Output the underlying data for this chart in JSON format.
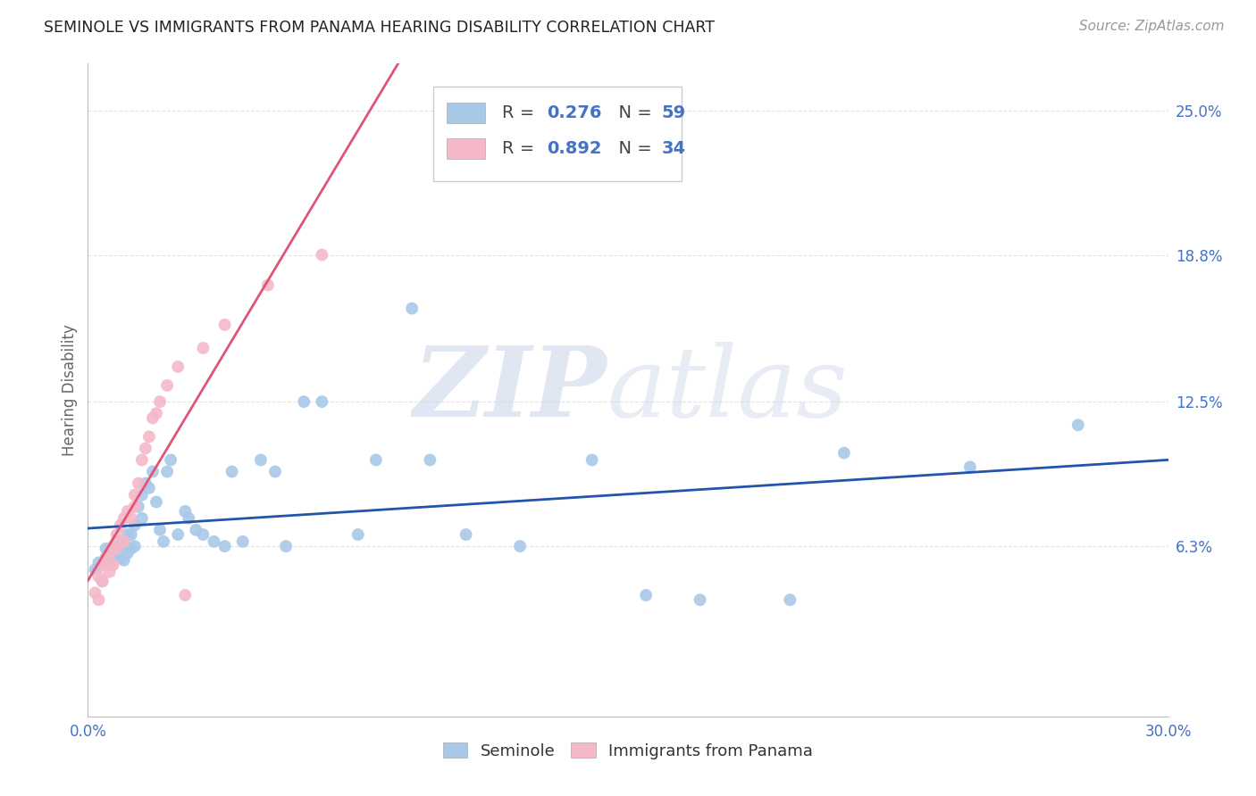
{
  "title": "SEMINOLE VS IMMIGRANTS FROM PANAMA HEARING DISABILITY CORRELATION CHART",
  "source": "Source: ZipAtlas.com",
  "ylabel": "Hearing Disability",
  "yticks": [
    "6.3%",
    "12.5%",
    "18.8%",
    "25.0%"
  ],
  "ytick_vals": [
    0.063,
    0.125,
    0.188,
    0.25
  ],
  "xmin": 0.0,
  "xmax": 0.3,
  "ymin": -0.01,
  "ymax": 0.27,
  "seminole_color": "#a8c8e8",
  "panama_color": "#f4b8c8",
  "trend_seminole_color": "#2255aa",
  "trend_panama_color": "#e05575",
  "legend_R_seminole": "0.276",
  "legend_N_seminole": "59",
  "legend_R_panama": "0.892",
  "legend_N_panama": "34",
  "seminole_x": [
    0.002,
    0.003,
    0.004,
    0.005,
    0.005,
    0.006,
    0.006,
    0.007,
    0.007,
    0.008,
    0.008,
    0.009,
    0.009,
    0.01,
    0.01,
    0.011,
    0.011,
    0.012,
    0.012,
    0.013,
    0.013,
    0.014,
    0.015,
    0.015,
    0.016,
    0.017,
    0.018,
    0.019,
    0.02,
    0.021,
    0.022,
    0.023,
    0.025,
    0.027,
    0.028,
    0.03,
    0.032,
    0.035,
    0.038,
    0.04,
    0.043,
    0.048,
    0.052,
    0.055,
    0.06,
    0.065,
    0.075,
    0.08,
    0.09,
    0.095,
    0.105,
    0.12,
    0.14,
    0.155,
    0.17,
    0.195,
    0.21,
    0.245,
    0.275
  ],
  "seminole_y": [
    0.053,
    0.056,
    0.048,
    0.058,
    0.062,
    0.055,
    0.06,
    0.062,
    0.058,
    0.06,
    0.065,
    0.058,
    0.063,
    0.057,
    0.065,
    0.06,
    0.068,
    0.062,
    0.068,
    0.063,
    0.072,
    0.08,
    0.075,
    0.085,
    0.09,
    0.088,
    0.095,
    0.082,
    0.07,
    0.065,
    0.095,
    0.1,
    0.068,
    0.078,
    0.075,
    0.07,
    0.068,
    0.065,
    0.063,
    0.095,
    0.065,
    0.1,
    0.095,
    0.063,
    0.125,
    0.125,
    0.068,
    0.1,
    0.165,
    0.1,
    0.068,
    0.063,
    0.1,
    0.042,
    0.04,
    0.04,
    0.103,
    0.097,
    0.115
  ],
  "panama_x": [
    0.002,
    0.003,
    0.003,
    0.004,
    0.004,
    0.005,
    0.005,
    0.006,
    0.006,
    0.007,
    0.007,
    0.008,
    0.008,
    0.009,
    0.01,
    0.01,
    0.011,
    0.012,
    0.013,
    0.013,
    0.014,
    0.015,
    0.016,
    0.017,
    0.018,
    0.019,
    0.02,
    0.022,
    0.025,
    0.027,
    0.032,
    0.038,
    0.05,
    0.065
  ],
  "panama_y": [
    0.043,
    0.04,
    0.05,
    0.048,
    0.055,
    0.055,
    0.058,
    0.052,
    0.06,
    0.055,
    0.063,
    0.062,
    0.068,
    0.072,
    0.065,
    0.075,
    0.078,
    0.075,
    0.08,
    0.085,
    0.09,
    0.1,
    0.105,
    0.11,
    0.118,
    0.12,
    0.125,
    0.132,
    0.14,
    0.042,
    0.148,
    0.158,
    0.175,
    0.188
  ],
  "background_color": "#ffffff",
  "grid_color": "#dddddd"
}
